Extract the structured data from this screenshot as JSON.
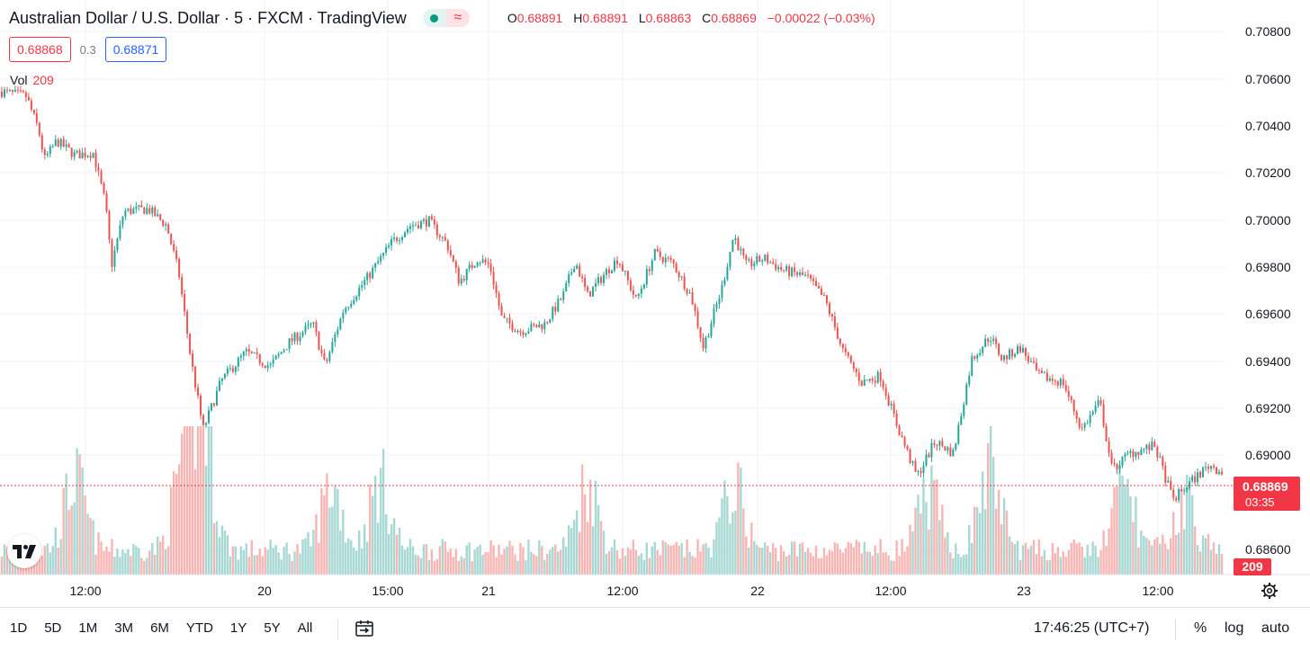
{
  "header": {
    "symbol_title": "Australian Dollar / U.S. Dollar · 5 · FXCM · TradingView",
    "status_icon": "wave-icon",
    "ohlc": {
      "o_label": "O",
      "o_value": "0.68891",
      "h_label": "H",
      "h_value": "0.68891",
      "l_label": "L",
      "l_value": "0.68863",
      "c_label": "C",
      "c_value": "0.68869",
      "change": "−0.00022 (−0.03%)"
    }
  },
  "quote": {
    "sell": "0.68868",
    "spread": "0.3",
    "buy": "0.68871"
  },
  "volume_legend": {
    "label": "Vol",
    "value": "209"
  },
  "price_scale": {
    "ticks": [
      "0.70800",
      "0.70600",
      "0.70400",
      "0.70200",
      "0.70000",
      "0.69800",
      "0.69600",
      "0.69400",
      "0.69200",
      "0.69000",
      "0.68600"
    ],
    "last_price": "0.68869",
    "countdown": "03:35",
    "last_volume": "209"
  },
  "time_axis": [
    "12:00",
    "20",
    "15:00",
    "21",
    "12:00",
    "22",
    "12:00",
    "23",
    "12:00"
  ],
  "bottom_bar": {
    "ranges": [
      "1D",
      "5D",
      "1M",
      "3M",
      "6M",
      "YTD",
      "1Y",
      "5Y",
      "All"
    ],
    "clock": "17:46:25 (UTC+7)",
    "percent": "%",
    "log": "log",
    "auto": "auto"
  },
  "colors": {
    "up": "#26a69a",
    "down": "#ef5350",
    "vol_up": "#a7d8d3",
    "vol_down": "#f7b6b4",
    "last_price": "#f23645",
    "grid": "#f0f3fa"
  },
  "chart_data": {
    "type": "candlestick",
    "interval": "5",
    "ylim": [
      0.6855,
      0.7085
    ],
    "price_path": [
      {
        "t": 0,
        "price": 0.7049
      },
      {
        "t": 0.02,
        "price": 0.7047
      },
      {
        "t": 0.03,
        "price": 0.7033
      },
      {
        "t": 0.035,
        "price": 0.702
      },
      {
        "t": 0.045,
        "price": 0.7028
      },
      {
        "t": 0.06,
        "price": 0.7022
      },
      {
        "t": 0.075,
        "price": 0.7023
      },
      {
        "t": 0.085,
        "price": 0.7001
      },
      {
        "t": 0.09,
        "price": 0.6975
      },
      {
        "t": 0.1,
        "price": 0.6998
      },
      {
        "t": 0.12,
        "price": 0.6999
      },
      {
        "t": 0.135,
        "price": 0.6992
      },
      {
        "t": 0.145,
        "price": 0.6972
      },
      {
        "t": 0.155,
        "price": 0.6935
      },
      {
        "t": 0.165,
        "price": 0.6905
      },
      {
        "t": 0.18,
        "price": 0.6926
      },
      {
        "t": 0.2,
        "price": 0.6938
      },
      {
        "t": 0.22,
        "price": 0.6932
      },
      {
        "t": 0.235,
        "price": 0.6942
      },
      {
        "t": 0.255,
        "price": 0.695
      },
      {
        "t": 0.265,
        "price": 0.6932
      },
      {
        "t": 0.28,
        "price": 0.6956
      },
      {
        "t": 0.3,
        "price": 0.697
      },
      {
        "t": 0.32,
        "price": 0.6985
      },
      {
        "t": 0.335,
        "price": 0.6992
      },
      {
        "t": 0.35,
        "price": 0.6994
      },
      {
        "t": 0.365,
        "price": 0.6984
      },
      {
        "t": 0.375,
        "price": 0.6968
      },
      {
        "t": 0.39,
        "price": 0.6978
      },
      {
        "t": 0.4,
        "price": 0.6975
      },
      {
        "t": 0.41,
        "price": 0.6952
      },
      {
        "t": 0.425,
        "price": 0.6947
      },
      {
        "t": 0.445,
        "price": 0.695
      },
      {
        "t": 0.46,
        "price": 0.6962
      },
      {
        "t": 0.47,
        "price": 0.6977
      },
      {
        "t": 0.48,
        "price": 0.6962
      },
      {
        "t": 0.495,
        "price": 0.6972
      },
      {
        "t": 0.505,
        "price": 0.6978
      },
      {
        "t": 0.52,
        "price": 0.696
      },
      {
        "t": 0.535,
        "price": 0.698
      },
      {
        "t": 0.55,
        "price": 0.6976
      },
      {
        "t": 0.565,
        "price": 0.6962
      },
      {
        "t": 0.575,
        "price": 0.694
      },
      {
        "t": 0.59,
        "price": 0.6965
      },
      {
        "t": 0.6,
        "price": 0.6988
      },
      {
        "t": 0.61,
        "price": 0.6975
      },
      {
        "t": 0.625,
        "price": 0.6978
      },
      {
        "t": 0.64,
        "price": 0.6973
      },
      {
        "t": 0.66,
        "price": 0.697
      },
      {
        "t": 0.675,
        "price": 0.696
      },
      {
        "t": 0.69,
        "price": 0.6938
      },
      {
        "t": 0.705,
        "price": 0.6925
      },
      {
        "t": 0.72,
        "price": 0.6928
      },
      {
        "t": 0.735,
        "price": 0.6905
      },
      {
        "t": 0.75,
        "price": 0.6885
      },
      {
        "t": 0.765,
        "price": 0.69
      },
      {
        "t": 0.78,
        "price": 0.6895
      },
      {
        "t": 0.795,
        "price": 0.6935
      },
      {
        "t": 0.81,
        "price": 0.6945
      },
      {
        "t": 0.82,
        "price": 0.6935
      },
      {
        "t": 0.835,
        "price": 0.694
      },
      {
        "t": 0.85,
        "price": 0.6928
      },
      {
        "t": 0.87,
        "price": 0.6925
      },
      {
        "t": 0.885,
        "price": 0.6905
      },
      {
        "t": 0.9,
        "price": 0.6917
      },
      {
        "t": 0.91,
        "price": 0.6888
      },
      {
        "t": 0.925,
        "price": 0.6895
      },
      {
        "t": 0.945,
        "price": 0.6898
      },
      {
        "t": 0.96,
        "price": 0.6875
      },
      {
        "t": 0.975,
        "price": 0.6883
      },
      {
        "t": 0.99,
        "price": 0.689
      },
      {
        "t": 1,
        "price": 0.6887
      }
    ],
    "volume_peaks": [
      {
        "t": 0.06,
        "volume": 1.0
      },
      {
        "t": 0.15,
        "volume": 1.3
      },
      {
        "t": 0.165,
        "volume": 1.6
      },
      {
        "t": 0.27,
        "volume": 0.9
      },
      {
        "t": 0.31,
        "volume": 0.95
      },
      {
        "t": 0.48,
        "volume": 0.95
      },
      {
        "t": 0.6,
        "volume": 0.9
      },
      {
        "t": 0.76,
        "volume": 0.8
      },
      {
        "t": 0.81,
        "volume": 1.2
      },
      {
        "t": 0.92,
        "volume": 0.9
      },
      {
        "t": 0.97,
        "volume": 0.7
      }
    ],
    "last_price": 0.68869,
    "last_volume": 209
  }
}
